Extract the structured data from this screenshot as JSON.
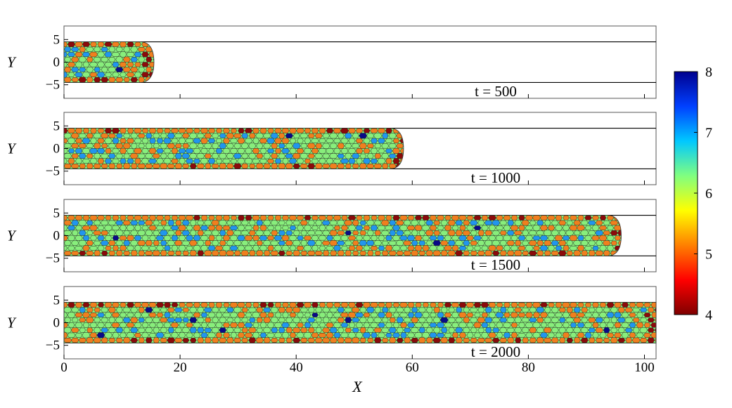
{
  "chart_data": {
    "type": "heatmap",
    "description_text": "",
    "xlabel": "X",
    "ylabel": "Y",
    "xlim": [
      0,
      102
    ],
    "ylim": [
      -8,
      8
    ],
    "x_ticks": [
      0,
      20,
      40,
      60,
      80,
      100
    ],
    "y_ticks": [
      5,
      0,
      -5
    ],
    "y_tick_labels": [
      "5",
      "0",
      "−5"
    ],
    "channel_walls": [
      4.5,
      -4.5
    ],
    "colorbar": {
      "min": 4,
      "max": 8,
      "ticks": [
        4,
        5,
        6,
        7,
        8
      ],
      "colors": [
        "#7f0000",
        "#ff0000",
        "#ff8000",
        "#ffff00",
        "#80ff80",
        "#00c8ff",
        "#0040ff",
        "#00008f"
      ]
    },
    "panels": [
      {
        "time_label": "t = 500",
        "front_x": 15.5
      },
      {
        "time_label": "t = 1000",
        "front_x": 58.5
      },
      {
        "time_label": "t = 1500",
        "front_x": 96
      },
      {
        "time_label": "t = 2000",
        "front_x": 102
      }
    ],
    "cell_palette": {
      "4": "#8b0a0a",
      "5": "#f07f1e",
      "6": "#88ee7c",
      "7": "#2196ee",
      "8": "#0a0a86"
    }
  }
}
